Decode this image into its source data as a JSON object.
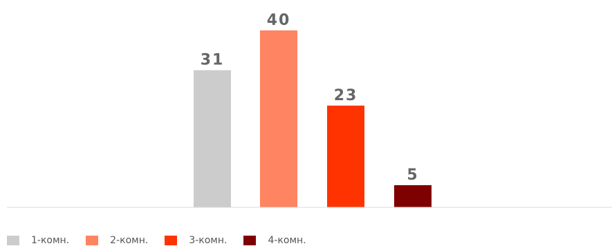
{
  "chart_data": {
    "type": "bar",
    "categories": [
      "1-комн.",
      "2-комн.",
      "3-комн.",
      "4-комн."
    ],
    "values": [
      31,
      40,
      23,
      5
    ],
    "colors": [
      "#cccccc",
      "#ff8461",
      "#ff3300",
      "#7f0000"
    ],
    "ylim": [
      0,
      40
    ],
    "grid": false,
    "legend": "bottom-left",
    "data_label_color": "#666666",
    "axis_color": "#d9d9d9",
    "title": "",
    "xlabel": "",
    "ylabel": ""
  }
}
